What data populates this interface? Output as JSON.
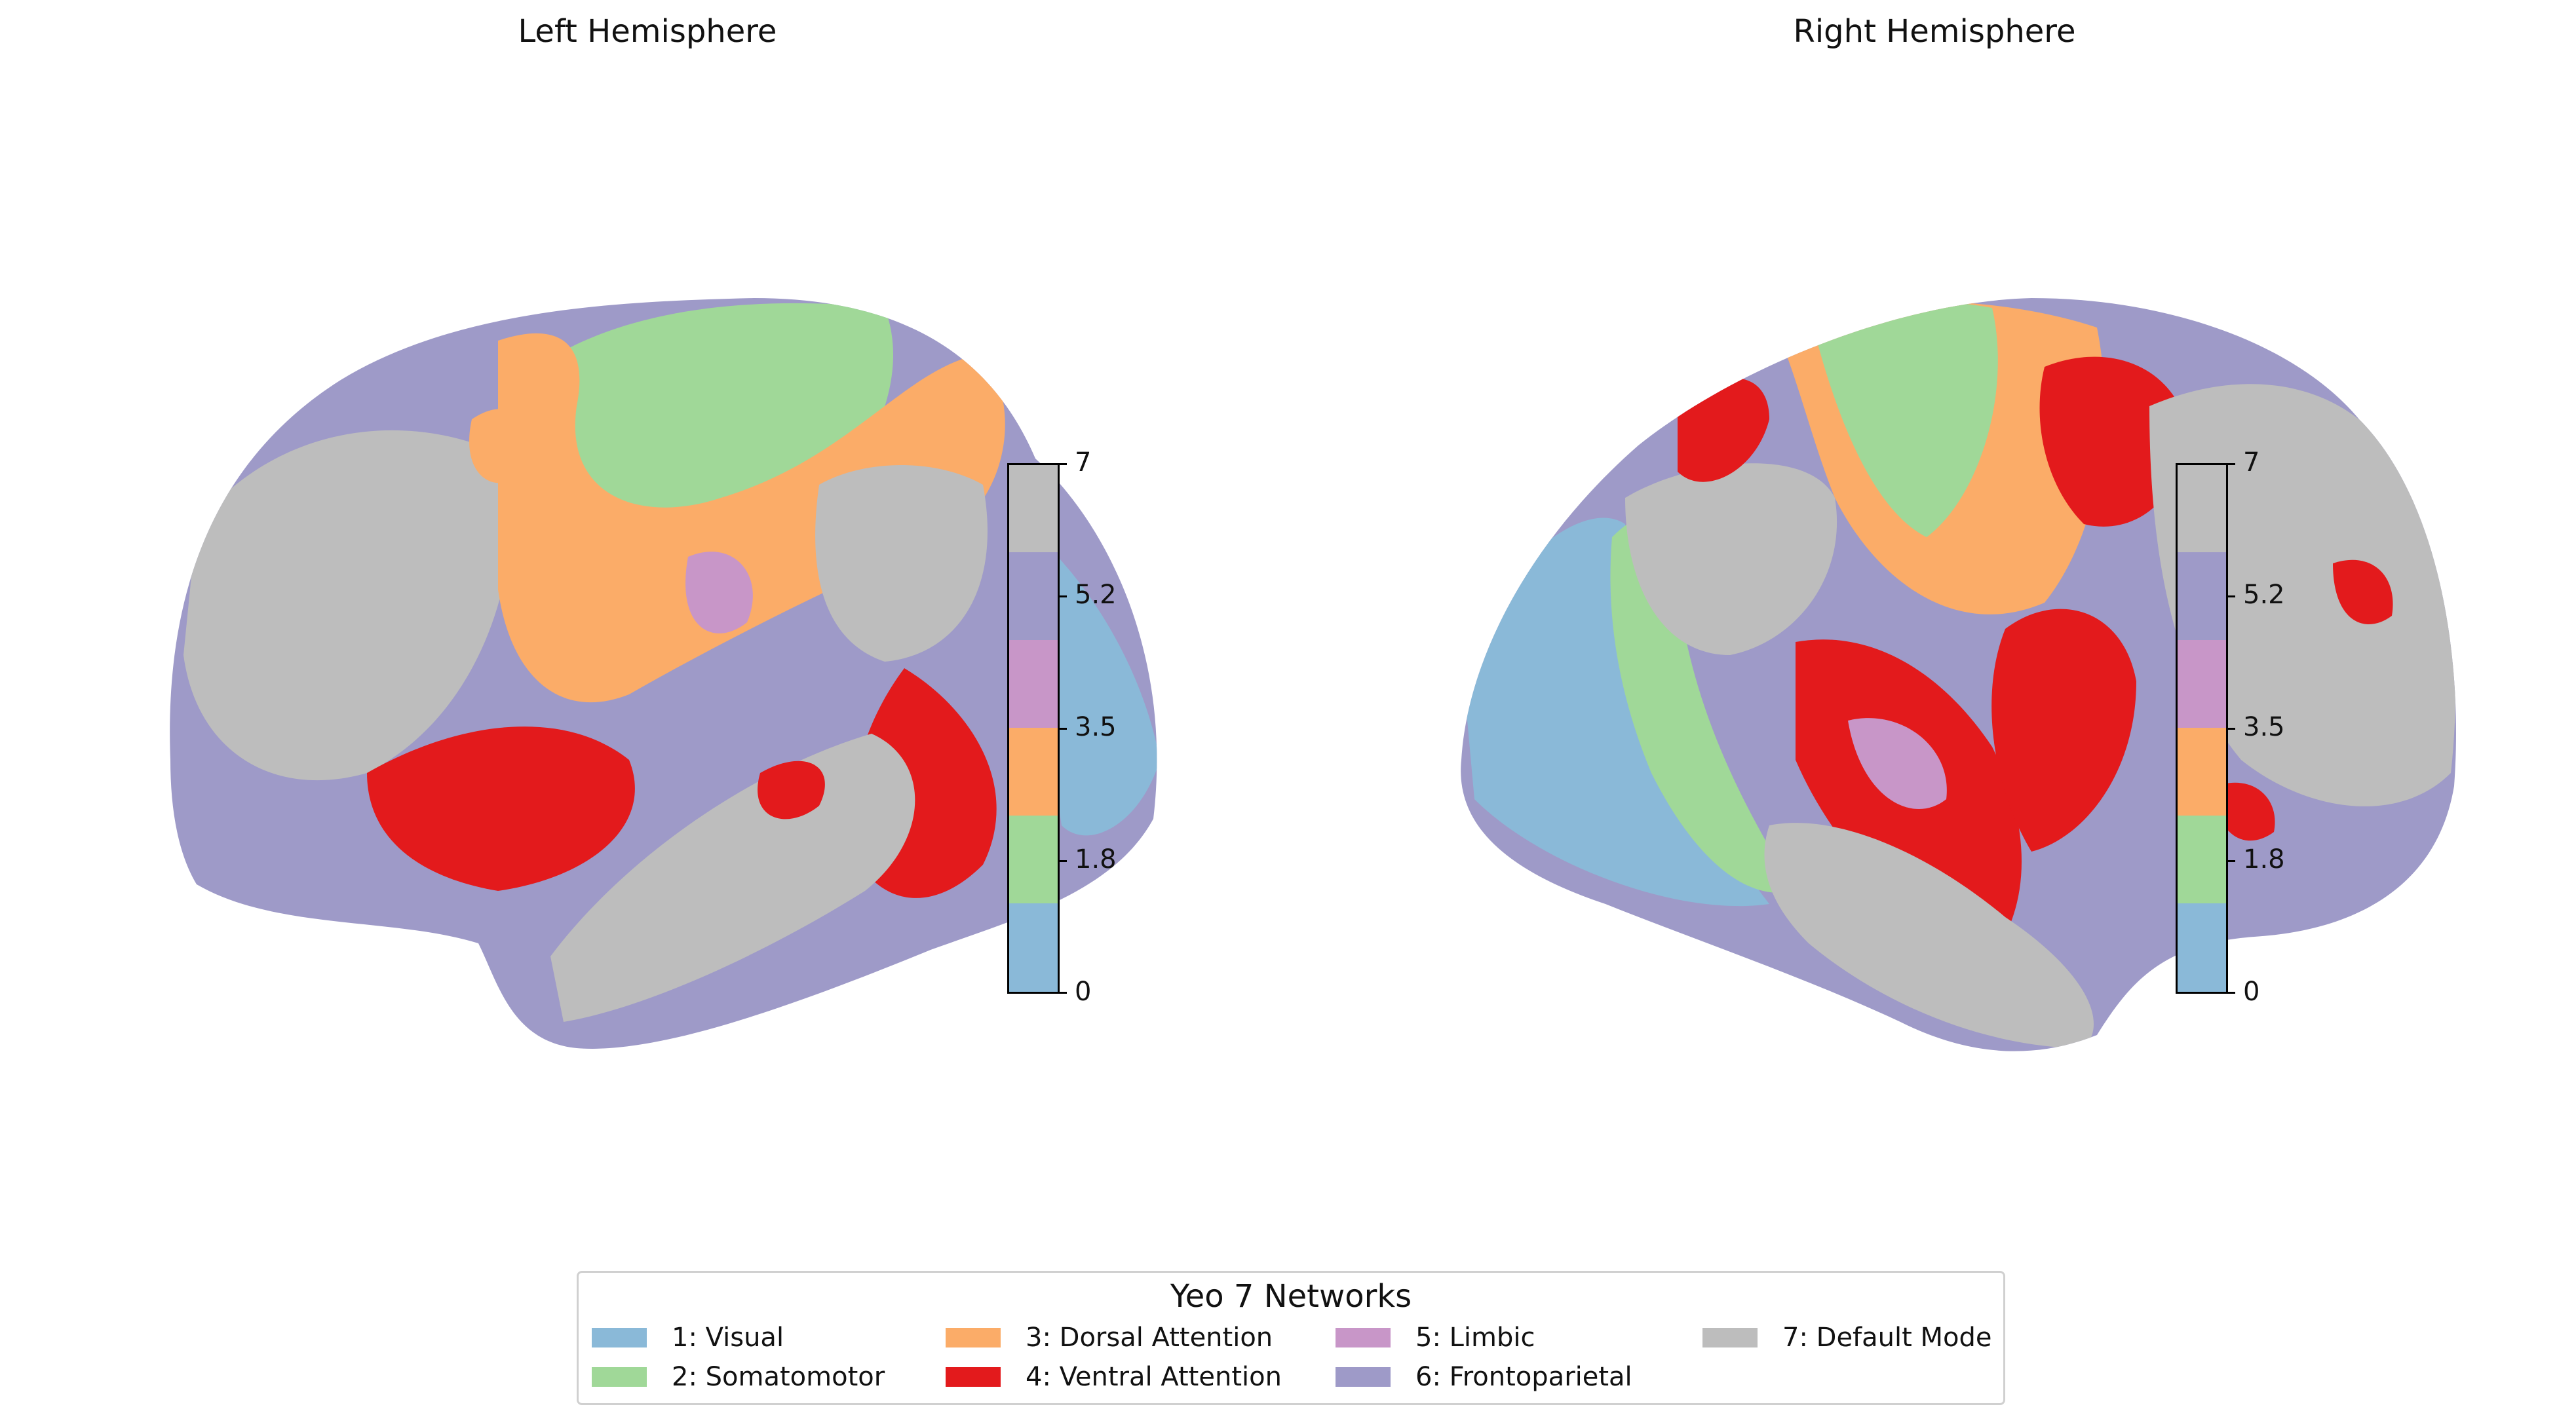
{
  "titles": {
    "left": "Left Hemisphere",
    "right": "Right Hemisphere"
  },
  "networks": [
    {
      "label": "1: Visual",
      "color": "#8ab9d8"
    },
    {
      "label": "2: Somatomotor",
      "color": "#a0d898"
    },
    {
      "label": "3: Dorsal Attention",
      "color": "#fbac68"
    },
    {
      "label": "4: Ventral Attention",
      "color": "#e31a1c"
    },
    {
      "label": "5: Limbic",
      "color": "#c896c8"
    },
    {
      "label": "6: Frontoparietal",
      "color": "#9e9ac8"
    },
    {
      "label": "7: Default Mode",
      "color": "#bdbdbd"
    }
  ],
  "legend": {
    "title": "Yeo 7 Networks"
  },
  "colorbar": {
    "ticks": [
      "0",
      "1.8",
      "3.5",
      "5.2",
      "7"
    ],
    "range": [
      0,
      7
    ]
  }
}
